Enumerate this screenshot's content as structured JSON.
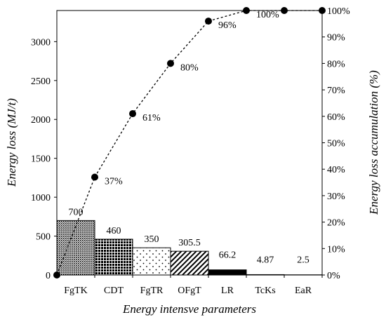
{
  "chart_data": {
    "type": "bar",
    "xlabel": "Energy intensve parameters",
    "ylabel": "Energy loss (MJ/t)",
    "y2label": "Energy loss accumulation (%)",
    "categories": [
      "FgTK",
      "CDT",
      "FgTR",
      "OFgT",
      "LR",
      "TcKs",
      "EaR"
    ],
    "values": [
      700,
      460,
      350,
      305.5,
      66.2,
      4.87,
      2.5
    ],
    "value_labels": [
      "700",
      "460",
      "350",
      "305.5",
      "66.2",
      "4.87",
      "2.5"
    ],
    "ylim": [
      0,
      3400
    ],
    "yticks": [
      0,
      500,
      1000,
      1500,
      2000,
      2500,
      3000
    ],
    "bar_patterns": [
      "dense-dots",
      "crosshatch",
      "sparse-dots",
      "diagonal",
      "solid",
      "solid",
      "solid"
    ],
    "cumulative": {
      "type": "line",
      "style": "dashed",
      "marker": "circle",
      "x_positions": [
        0,
        1,
        2,
        3,
        4,
        5,
        6,
        7
      ],
      "values": [
        0,
        37,
        61,
        80,
        96,
        100,
        100,
        100
      ],
      "labels": [
        "",
        "37%",
        "61%",
        "80%",
        "96%",
        "100%",
        "",
        ""
      ]
    },
    "y2lim": [
      0,
      100
    ],
    "y2ticks": [
      "0%",
      "10%",
      "20%",
      "30%",
      "40%",
      "50%",
      "60%",
      "70%",
      "80%",
      "90%",
      "100%"
    ],
    "legend": "none",
    "grid": false
  }
}
